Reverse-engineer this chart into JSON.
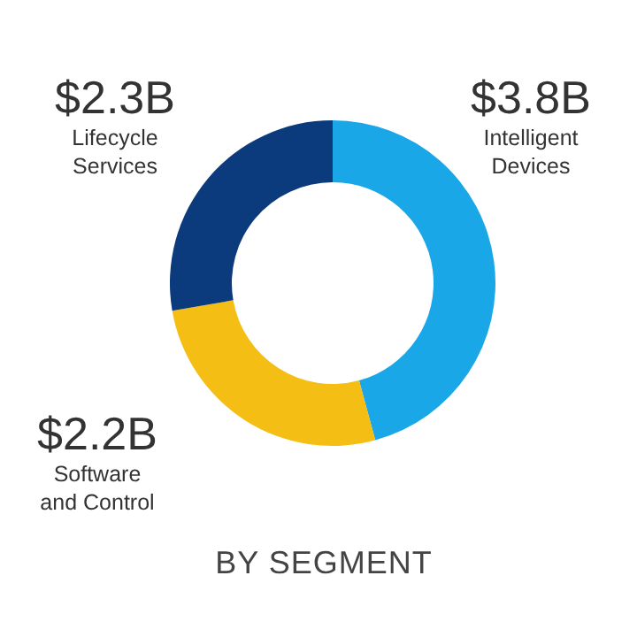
{
  "chart_data": {
    "type": "donut",
    "title": "BY SEGMENT",
    "categories": [
      "Intelligent Devices",
      "Software and Control",
      "Lifecycle Services"
    ],
    "values": [
      3.8,
      2.2,
      2.3
    ],
    "colors": [
      "#1aa7e8",
      "#f5be14",
      "#0b3b7c"
    ],
    "value_labels": [
      "$3.8B",
      "$2.2B",
      "$2.3B"
    ]
  }
}
